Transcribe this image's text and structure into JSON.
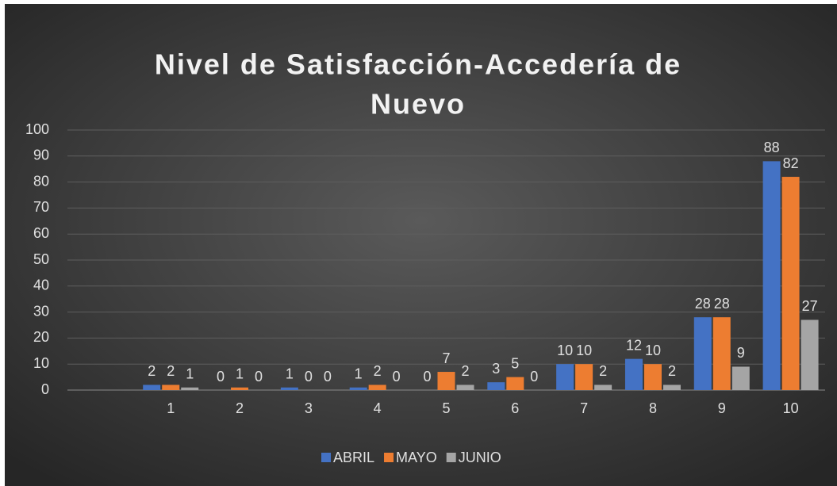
{
  "chart_data": {
    "type": "bar",
    "title": "Nivel de Satisfacción-Accedería de Nuevo",
    "categories": [
      null,
      "1",
      "2",
      "3",
      "4",
      "5",
      "6",
      "7",
      "8",
      "9",
      "10"
    ],
    "series": [
      {
        "name": "ABRIL",
        "color": "#4472c4",
        "values": [
          null,
          2,
          0,
          1,
          1,
          0,
          3,
          10,
          12,
          28,
          88
        ]
      },
      {
        "name": "MAYO",
        "color": "#ed7d31",
        "values": [
          null,
          2,
          1,
          0,
          2,
          7,
          5,
          10,
          10,
          28,
          82
        ]
      },
      {
        "name": "JUNIO",
        "color": "#a5a5a5",
        "values": [
          null,
          1,
          0,
          0,
          0,
          2,
          0,
          2,
          2,
          9,
          27
        ]
      }
    ],
    "ylim": [
      0,
      100
    ],
    "yticks": [
      0,
      10,
      20,
      30,
      40,
      50,
      60,
      70,
      80,
      90,
      100
    ],
    "grid": true,
    "legend": "bottom"
  }
}
